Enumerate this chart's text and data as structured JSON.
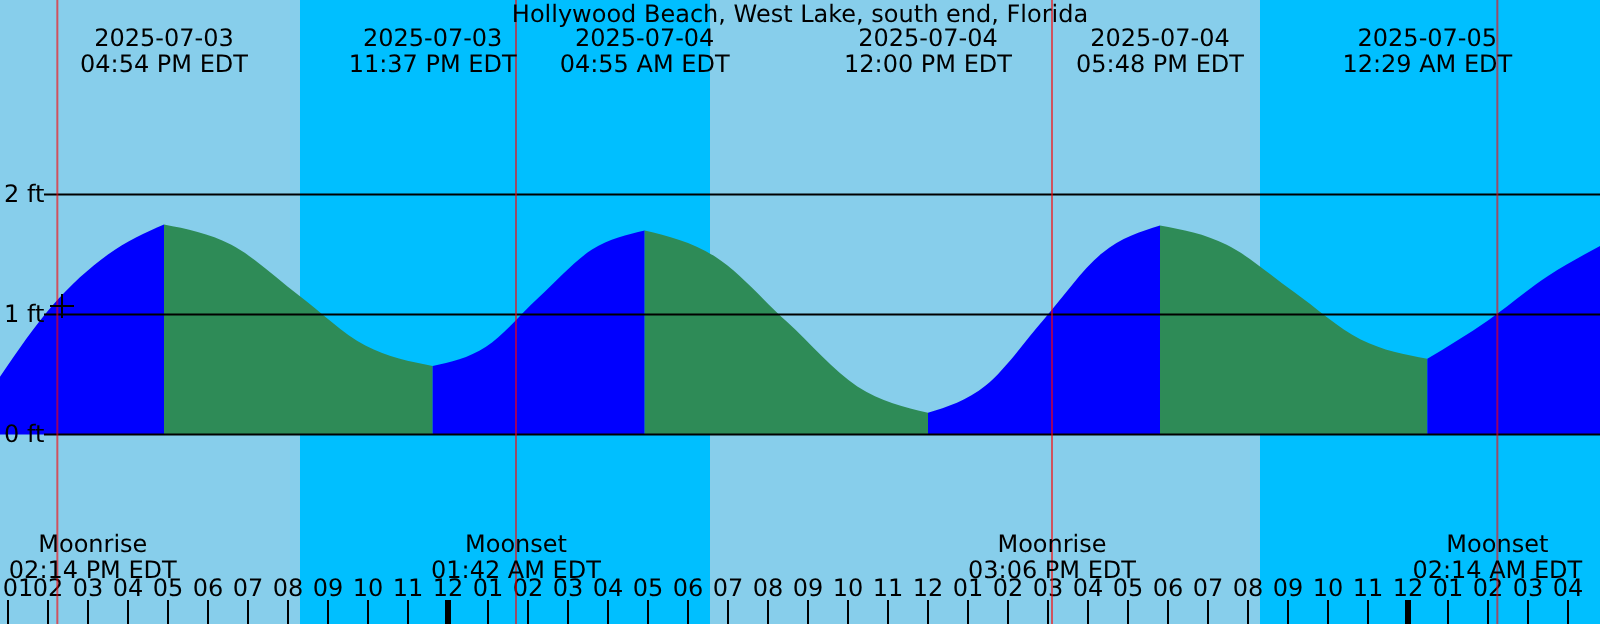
{
  "chart_data": {
    "type": "area",
    "title": "Hollywood Beach, West Lake, south end, Florida",
    "series": [
      {
        "color": "#0000ff",
        "x": [
          "2025-07-03T12:48",
          "2025-07-03T14:06",
          "2025-07-03T15:30",
          "2025-07-03T16:54"
        ],
        "values": [
          0.48,
          1.07,
          1.5,
          1.75
        ]
      },
      {
        "color": "#2e8b57",
        "x": [
          "2025-07-03T16:54",
          "2025-07-03T18:35",
          "2025-07-03T20:16",
          "2025-07-03T21:56",
          "2025-07-03T23:37"
        ],
        "values": [
          1.75,
          1.58,
          1.16,
          0.74,
          0.57
        ]
      },
      {
        "color": "#0000ff",
        "x": [
          "2025-07-03T23:37",
          "2025-07-04T00:57",
          "2025-07-04T02:16",
          "2025-07-04T03:36",
          "2025-07-04T04:55"
        ],
        "values": [
          0.57,
          0.73,
          1.14,
          1.54,
          1.7
        ]
      },
      {
        "color": "#2e8b57",
        "x": [
          "2025-07-04T04:55",
          "2025-07-04T06:41",
          "2025-07-04T08:28",
          "2025-07-04T10:14",
          "2025-07-04T12:00"
        ],
        "values": [
          1.7,
          1.48,
          0.94,
          0.4,
          0.18
        ]
      },
      {
        "color": "#0000ff",
        "x": [
          "2025-07-04T12:00",
          "2025-07-04T13:27",
          "2025-07-04T14:54",
          "2025-07-04T16:21",
          "2025-07-04T17:48"
        ],
        "values": [
          0.18,
          0.41,
          0.96,
          1.51,
          1.74
        ]
      },
      {
        "color": "#2e8b57",
        "x": [
          "2025-07-04T17:48",
          "2025-07-04T19:28",
          "2025-07-04T21:08",
          "2025-07-04T22:49",
          "2025-07-05T00:29"
        ],
        "values": [
          1.74,
          1.58,
          1.19,
          0.79,
          0.63
        ]
      },
      {
        "color": "#0000ff",
        "x": [
          "2025-07-05T00:29",
          "2025-07-05T02:00",
          "2025-07-05T03:30",
          "2025-07-05T04:48"
        ],
        "values": [
          0.63,
          0.95,
          1.32,
          1.57
        ]
      }
    ],
    "xlim": [
      "2025-07-03T12:48",
      "2025-07-05T04:48"
    ],
    "xticks": [
      {
        "value": "2025-07-03T13:00",
        "label": "01"
      },
      {
        "value": "2025-07-03T14:00",
        "label": "02"
      },
      {
        "value": "2025-07-03T15:00",
        "label": "03"
      },
      {
        "value": "2025-07-03T16:00",
        "label": "04"
      },
      {
        "value": "2025-07-03T17:00",
        "label": "05"
      },
      {
        "value": "2025-07-03T18:00",
        "label": "06"
      },
      {
        "value": "2025-07-03T19:00",
        "label": "07"
      },
      {
        "value": "2025-07-03T20:00",
        "label": "08"
      },
      {
        "value": "2025-07-03T21:00",
        "label": "09"
      },
      {
        "value": "2025-07-03T22:00",
        "label": "10"
      },
      {
        "value": "2025-07-03T23:00",
        "label": "11"
      },
      {
        "value": "2025-07-04T00:00",
        "label": "12"
      },
      {
        "value": "2025-07-04T01:00",
        "label": "01"
      },
      {
        "value": "2025-07-04T02:00",
        "label": "02"
      },
      {
        "value": "2025-07-04T03:00",
        "label": "03"
      },
      {
        "value": "2025-07-04T04:00",
        "label": "04"
      },
      {
        "value": "2025-07-04T05:00",
        "label": "05"
      },
      {
        "value": "2025-07-04T06:00",
        "label": "06"
      },
      {
        "value": "2025-07-04T07:00",
        "label": "07"
      },
      {
        "value": "2025-07-04T08:00",
        "label": "08"
      },
      {
        "value": "2025-07-04T09:00",
        "label": "09"
      },
      {
        "value": "2025-07-04T10:00",
        "label": "10"
      },
      {
        "value": "2025-07-04T11:00",
        "label": "11"
      },
      {
        "value": "2025-07-04T12:00",
        "label": "12"
      },
      {
        "value": "2025-07-04T13:00",
        "label": "01"
      },
      {
        "value": "2025-07-04T14:00",
        "label": "02"
      },
      {
        "value": "2025-07-04T15:00",
        "label": "03"
      },
      {
        "value": "2025-07-04T16:00",
        "label": "04"
      },
      {
        "value": "2025-07-04T17:00",
        "label": "05"
      },
      {
        "value": "2025-07-04T18:00",
        "label": "06"
      },
      {
        "value": "2025-07-04T19:00",
        "label": "07"
      },
      {
        "value": "2025-07-04T20:00",
        "label": "08"
      },
      {
        "value": "2025-07-04T21:00",
        "label": "09"
      },
      {
        "value": "2025-07-04T22:00",
        "label": "10"
      },
      {
        "value": "2025-07-04T23:00",
        "label": "11"
      },
      {
        "value": "2025-07-05T00:00",
        "label": "12"
      },
      {
        "value": "2025-07-05T01:00",
        "label": "01"
      },
      {
        "value": "2025-07-05T02:00",
        "label": "02"
      },
      {
        "value": "2025-07-05T03:00",
        "label": "03"
      },
      {
        "value": "2025-07-05T04:00",
        "label": "04"
      }
    ],
    "ylim": [
      -1.58,
      3.62
    ],
    "yticks": [
      {
        "value": 0,
        "label": "0 ft"
      },
      {
        "value": 1,
        "label": "1 ft"
      },
      {
        "value": 2,
        "label": "2 ft"
      }
    ],
    "grid": "y",
    "bands": [
      {
        "axis": "x",
        "from": "2025-07-03T20:18",
        "to": "2025-07-04T06:33",
        "color": "#00bfff"
      },
      {
        "axis": "x",
        "from": "2025-07-04T20:18",
        "to": "2025-07-05T04:48",
        "color": "#00bfff"
      }
    ],
    "ref_lines": [
      {
        "axis": "x",
        "value": "2025-07-03T14:14",
        "label": "Moonrise\n02:14 PM EDT",
        "color": "#ff0000"
      },
      {
        "axis": "x",
        "value": "2025-07-04T01:42",
        "label": "Moonset\n01:42 AM EDT",
        "color": "#ff0000"
      },
      {
        "axis": "x",
        "value": "2025-07-04T15:06",
        "label": "Moonrise\n03:06 PM EDT",
        "color": "#ff0000"
      },
      {
        "axis": "x",
        "value": "2025-07-05T02:14",
        "label": "Moonset\n02:14 AM EDT",
        "color": "#ff0000"
      }
    ],
    "annotations": [
      "2025-07-03\n04:54 PM EDT",
      "2025-07-03\n11:37 PM EDT",
      "2025-07-04\n04:55 AM EDT",
      "2025-07-04\n12:00 PM EDT",
      "2025-07-04\n05:48 PM EDT",
      "2025-07-05\n12:29 AM EDT"
    ]
  }
}
